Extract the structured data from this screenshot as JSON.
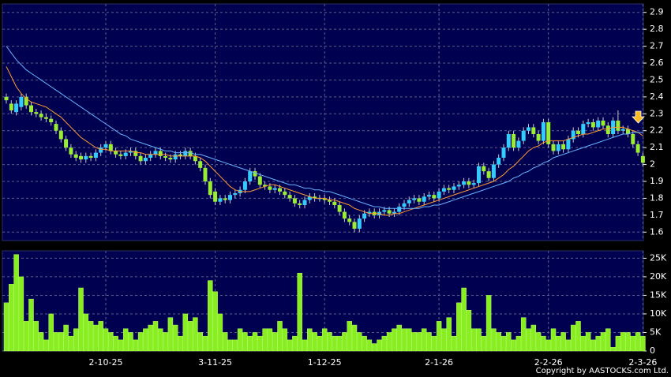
{
  "chart_data": [
    {
      "type": "candlestick",
      "up_color": "#33ccff",
      "down_color": "#99ee33",
      "open": [
        2.4,
        2.36,
        2.31,
        2.34,
        2.4,
        2.35,
        2.31,
        2.3,
        2.28,
        2.27,
        2.24,
        2.2,
        2.15,
        2.1,
        2.06,
        2.05,
        2.03,
        2.05,
        2.04,
        2.07,
        2.1,
        2.12,
        2.08,
        2.06,
        2.05,
        2.07,
        2.08,
        2.05,
        2.02,
        2.04,
        2.06,
        2.08,
        2.05,
        2.04,
        2.03,
        2.06,
        2.05,
        2.08,
        2.05,
        2.02,
        1.98,
        1.9,
        1.84,
        1.78,
        1.8,
        1.79,
        1.82,
        1.83,
        1.85,
        1.9,
        1.96,
        1.93,
        1.88,
        1.87,
        1.85,
        1.86,
        1.84,
        1.82,
        1.8,
        1.77,
        1.76,
        1.79,
        1.81,
        1.8,
        1.8,
        1.79,
        1.78,
        1.76,
        1.72,
        1.68,
        1.66,
        1.62,
        1.68,
        1.71,
        1.72,
        1.7,
        1.72,
        1.73,
        1.71,
        1.72,
        1.75,
        1.77,
        1.79,
        1.8,
        1.78,
        1.81,
        1.82,
        1.8,
        1.84,
        1.86,
        1.85,
        1.87,
        1.88,
        1.9,
        1.88,
        1.89,
        1.99,
        1.96,
        1.92,
        2.0,
        2.04,
        2.1,
        2.18,
        2.1,
        2.14,
        2.2,
        2.22,
        2.18,
        2.14,
        2.25,
        2.12,
        2.08,
        2.12,
        2.09,
        2.15,
        2.2,
        2.18,
        2.24,
        2.25,
        2.22,
        2.26,
        2.23,
        2.18,
        2.26,
        2.2,
        2.21,
        2.18,
        2.12,
        2.05
      ],
      "high": [
        2.42,
        2.38,
        2.38,
        2.42,
        2.42,
        2.37,
        2.33,
        2.32,
        2.3,
        2.29,
        2.26,
        2.22,
        2.17,
        2.12,
        2.08,
        2.07,
        2.07,
        2.07,
        2.09,
        2.12,
        2.14,
        2.14,
        2.1,
        2.08,
        2.09,
        2.1,
        2.1,
        2.07,
        2.06,
        2.08,
        2.1,
        2.1,
        2.07,
        2.06,
        2.08,
        2.08,
        2.1,
        2.1,
        2.07,
        2.04,
        2.0,
        1.92,
        1.86,
        1.82,
        1.82,
        1.84,
        1.85,
        1.87,
        1.92,
        1.98,
        1.98,
        1.95,
        1.9,
        1.89,
        1.88,
        1.88,
        1.86,
        1.84,
        1.82,
        1.79,
        1.81,
        1.83,
        1.83,
        1.82,
        1.82,
        1.81,
        1.8,
        1.78,
        1.74,
        1.7,
        1.68,
        1.7,
        1.73,
        1.74,
        1.74,
        1.74,
        1.75,
        1.75,
        1.74,
        1.77,
        1.79,
        1.81,
        1.82,
        1.82,
        1.83,
        1.84,
        1.84,
        1.86,
        1.88,
        1.88,
        1.89,
        1.9,
        1.92,
        1.92,
        1.91,
        2.01,
        2.01,
        1.98,
        2.02,
        2.06,
        2.12,
        2.2,
        2.2,
        2.16,
        2.22,
        2.24,
        2.24,
        2.2,
        2.27,
        2.27,
        2.14,
        2.14,
        2.14,
        2.17,
        2.22,
        2.22,
        2.26,
        2.27,
        2.27,
        2.28,
        2.28,
        2.25,
        2.28,
        2.32,
        2.23,
        2.23,
        2.2,
        2.14,
        2.07
      ],
      "low": [
        2.36,
        2.3,
        2.29,
        2.32,
        2.33,
        2.29,
        2.28,
        2.26,
        2.25,
        2.23,
        2.18,
        2.13,
        2.08,
        2.04,
        2.02,
        2.01,
        2.01,
        2.02,
        2.02,
        2.05,
        2.08,
        2.06,
        2.04,
        2.03,
        2.03,
        2.05,
        2.03,
        2.0,
        2.0,
        2.02,
        2.04,
        2.03,
        2.02,
        2.01,
        2.01,
        2.03,
        2.03,
        2.03,
        2.0,
        1.96,
        1.88,
        1.8,
        1.76,
        1.76,
        1.77,
        1.77,
        1.8,
        1.81,
        1.83,
        1.88,
        1.91,
        1.86,
        1.85,
        1.83,
        1.83,
        1.82,
        1.8,
        1.78,
        1.75,
        1.74,
        1.74,
        1.77,
        1.78,
        1.78,
        1.77,
        1.76,
        1.74,
        1.7,
        1.66,
        1.64,
        1.6,
        1.6,
        1.66,
        1.69,
        1.68,
        1.68,
        1.7,
        1.69,
        1.69,
        1.7,
        1.73,
        1.75,
        1.77,
        1.76,
        1.76,
        1.79,
        1.78,
        1.78,
        1.82,
        1.83,
        1.83,
        1.85,
        1.86,
        1.86,
        1.86,
        1.87,
        1.94,
        1.9,
        1.9,
        1.98,
        2.02,
        2.08,
        2.08,
        2.08,
        2.12,
        2.18,
        2.16,
        2.12,
        2.12,
        2.1,
        2.06,
        2.06,
        2.07,
        2.07,
        2.13,
        2.16,
        2.16,
        2.22,
        2.2,
        2.2,
        2.21,
        2.16,
        2.16,
        2.18,
        2.18,
        2.16,
        2.1,
        2.05,
        1.99
      ],
      "close": [
        2.38,
        2.32,
        2.36,
        2.4,
        2.35,
        2.31,
        2.3,
        2.28,
        2.27,
        2.25,
        2.2,
        2.15,
        2.1,
        2.06,
        2.04,
        2.03,
        2.05,
        2.04,
        2.07,
        2.1,
        2.12,
        2.08,
        2.06,
        2.05,
        2.07,
        2.08,
        2.05,
        2.02,
        2.04,
        2.06,
        2.08,
        2.05,
        2.04,
        2.03,
        2.06,
        2.05,
        2.08,
        2.05,
        2.02,
        1.98,
        1.9,
        1.82,
        1.78,
        1.8,
        1.79,
        1.82,
        1.83,
        1.85,
        1.9,
        1.96,
        1.93,
        1.88,
        1.87,
        1.85,
        1.86,
        1.84,
        1.82,
        1.8,
        1.77,
        1.76,
        1.79,
        1.81,
        1.8,
        1.8,
        1.79,
        1.78,
        1.76,
        1.72,
        1.68,
        1.66,
        1.62,
        1.68,
        1.71,
        1.72,
        1.7,
        1.72,
        1.73,
        1.71,
        1.72,
        1.75,
        1.77,
        1.79,
        1.8,
        1.78,
        1.81,
        1.82,
        1.8,
        1.84,
        1.86,
        1.85,
        1.87,
        1.88,
        1.9,
        1.88,
        1.89,
        1.99,
        1.96,
        1.92,
        2.0,
        2.04,
        2.1,
        2.18,
        2.1,
        2.14,
        2.2,
        2.22,
        2.18,
        2.14,
        2.25,
        2.12,
        2.08,
        2.12,
        2.09,
        2.15,
        2.2,
        2.18,
        2.24,
        2.25,
        2.22,
        2.26,
        2.23,
        2.18,
        2.26,
        2.2,
        2.21,
        2.18,
        2.12,
        2.07,
        2.01
      ],
      "series": [
        {
          "type": "line",
          "color": "#ff9933",
          "values": [
            2.58,
            2.52,
            2.46,
            2.42,
            2.39,
            2.37,
            2.36,
            2.35,
            2.34,
            2.32,
            2.3,
            2.28,
            2.25,
            2.22,
            2.19,
            2.16,
            2.14,
            2.12,
            2.1,
            2.09,
            2.09,
            2.08,
            2.08,
            2.08,
            2.08,
            2.08,
            2.07,
            2.07,
            2.06,
            2.06,
            2.06,
            2.06,
            2.06,
            2.05,
            2.05,
            2.05,
            2.05,
            2.05,
            2.05,
            2.04,
            2.02,
            1.99,
            1.96,
            1.93,
            1.9,
            1.87,
            1.85,
            1.84,
            1.84,
            1.84,
            1.85,
            1.86,
            1.87,
            1.88,
            1.88,
            1.87,
            1.86,
            1.85,
            1.84,
            1.83,
            1.82,
            1.81,
            1.8,
            1.8,
            1.8,
            1.79,
            1.79,
            1.78,
            1.77,
            1.76,
            1.74,
            1.73,
            1.72,
            1.71,
            1.71,
            1.71,
            1.7,
            1.7,
            1.71,
            1.71,
            1.72,
            1.73,
            1.74,
            1.75,
            1.76,
            1.77,
            1.78,
            1.79,
            1.8,
            1.81,
            1.82,
            1.83,
            1.84,
            1.85,
            1.86,
            1.87,
            1.88,
            1.89,
            1.9,
            1.92,
            1.94,
            1.97,
            1.99,
            2.02,
            2.05,
            2.08,
            2.1,
            2.11,
            2.13,
            2.14,
            2.14,
            2.14,
            2.14,
            2.15,
            2.16,
            2.17,
            2.18,
            2.18,
            2.19,
            2.2,
            2.21,
            2.21,
            2.22,
            2.22,
            2.22,
            2.21,
            2.2,
            2.19,
            2.17
          ]
        },
        {
          "type": "line",
          "color": "#66b3ff",
          "values": [
            2.7,
            2.66,
            2.62,
            2.59,
            2.56,
            2.54,
            2.52,
            2.5,
            2.48,
            2.46,
            2.44,
            2.42,
            2.4,
            2.38,
            2.36,
            2.34,
            2.32,
            2.3,
            2.28,
            2.26,
            2.24,
            2.22,
            2.2,
            2.18,
            2.17,
            2.15,
            2.14,
            2.13,
            2.12,
            2.11,
            2.1,
            2.09,
            2.08,
            2.08,
            2.07,
            2.07,
            2.07,
            2.07,
            2.06,
            2.06,
            2.05,
            2.04,
            2.03,
            2.02,
            2.01,
            2.0,
            1.99,
            1.98,
            1.97,
            1.96,
            1.95,
            1.94,
            1.93,
            1.92,
            1.91,
            1.9,
            1.89,
            1.88,
            1.88,
            1.87,
            1.86,
            1.86,
            1.85,
            1.85,
            1.84,
            1.84,
            1.83,
            1.82,
            1.81,
            1.8,
            1.79,
            1.78,
            1.77,
            1.76,
            1.75,
            1.75,
            1.74,
            1.74,
            1.74,
            1.74,
            1.74,
            1.74,
            1.74,
            1.74,
            1.75,
            1.75,
            1.76,
            1.76,
            1.77,
            1.78,
            1.79,
            1.8,
            1.81,
            1.82,
            1.83,
            1.84,
            1.85,
            1.86,
            1.87,
            1.88,
            1.89,
            1.9,
            1.92,
            1.93,
            1.95,
            1.96,
            1.98,
            1.99,
            2.01,
            2.02,
            2.04,
            2.05,
            2.06,
            2.07,
            2.08,
            2.09,
            2.1,
            2.11,
            2.12,
            2.13,
            2.14,
            2.15,
            2.16,
            2.17,
            2.18,
            2.18,
            2.19,
            2.19,
            2.19
          ]
        }
      ],
      "ylim": [
        1.55,
        2.95
      ],
      "yticks": [
        1.6,
        1.7,
        1.8,
        1.9,
        2,
        2.1,
        2.2,
        2.3,
        2.4,
        2.5,
        2.6,
        2.7,
        2.8,
        2.9
      ],
      "grid": true
    },
    {
      "type": "bar",
      "color": "#88ee22",
      "categories": [
        null,
        null,
        null,
        null,
        null,
        null,
        null,
        null,
        null,
        null,
        null,
        null,
        null,
        null,
        null,
        null,
        null,
        null,
        null,
        null,
        "2-10-25",
        null,
        null,
        null,
        null,
        null,
        null,
        null,
        null,
        null,
        null,
        null,
        null,
        null,
        null,
        null,
        null,
        null,
        null,
        null,
        null,
        null,
        "3-11-25",
        null,
        null,
        null,
        null,
        null,
        null,
        null,
        null,
        null,
        null,
        null,
        null,
        null,
        null,
        null,
        null,
        null,
        null,
        null,
        null,
        null,
        "1-12-25",
        null,
        null,
        null,
        null,
        null,
        null,
        null,
        null,
        null,
        null,
        null,
        null,
        null,
        null,
        null,
        null,
        null,
        null,
        null,
        null,
        null,
        null,
        "2-1-26",
        null,
        null,
        null,
        null,
        null,
        null,
        null,
        null,
        null,
        null,
        null,
        null,
        null,
        null,
        null,
        null,
        null,
        null,
        null,
        null,
        null,
        "2-2-26",
        null,
        null,
        null,
        null,
        null,
        null,
        null,
        null,
        null,
        null,
        null,
        null,
        null,
        null,
        null,
        null,
        null,
        null,
        "2-3-26"
      ],
      "values": [
        13000,
        18000,
        26000,
        20000,
        8000,
        14000,
        8000,
        5000,
        3000,
        10000,
        5000,
        5000,
        7000,
        4000,
        6000,
        17000,
        10000,
        8000,
        7000,
        8000,
        6000,
        5000,
        4000,
        3000,
        6000,
        5000,
        3000,
        5000,
        6000,
        7000,
        8000,
        6000,
        5000,
        9000,
        7000,
        4000,
        10000,
        8000,
        9000,
        5000,
        4000,
        19000,
        16000,
        10000,
        5000,
        3000,
        3000,
        6000,
        5000,
        4000,
        5000,
        4000,
        6000,
        6000,
        5000,
        8000,
        6000,
        3000,
        4000,
        21000,
        3000,
        6000,
        5000,
        4000,
        6000,
        5000,
        4000,
        4000,
        5000,
        8000,
        7000,
        5000,
        4000,
        3000,
        2000,
        3000,
        4000,
        5000,
        6000,
        7000,
        6000,
        6000,
        5000,
        5000,
        6000,
        5000,
        4000,
        8000,
        6000,
        9000,
        4000,
        13000,
        17000,
        11000,
        6000,
        6000,
        4000,
        15000,
        6000,
        5000,
        4000,
        5000,
        3000,
        4000,
        9000,
        6000,
        7000,
        5000,
        4000,
        3000,
        6000,
        4000,
        5000,
        3000,
        7000,
        8000,
        4000,
        5000,
        3000,
        4000,
        5000,
        6000,
        1000,
        4000,
        5000,
        5000,
        4000,
        5000,
        4000
      ],
      "ylim": [
        0,
        27000
      ],
      "yticks": [
        0,
        {
          "value": 5000,
          "label": "5K"
        },
        {
          "value": 10000,
          "label": "10K"
        },
        {
          "value": 15000,
          "label": "15K"
        },
        {
          "value": 20000,
          "label": "20K"
        },
        {
          "value": 25000,
          "label": "25K"
        }
      ],
      "grid": true
    }
  ],
  "copyright": "Copyright by AASTOCKS.com Ltd."
}
